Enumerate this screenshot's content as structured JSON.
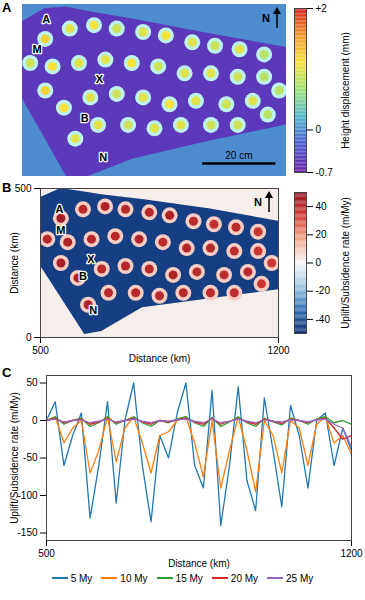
{
  "chart_data": [
    {
      "type": "heatmap",
      "panel": "A",
      "north": "N",
      "xlim": [
        0,
        72
      ],
      "ylim": [
        0,
        40
      ],
      "tick_labels": false,
      "region": {
        "x": [
          0,
          6,
          12,
          18,
          30,
          50,
          72
        ],
        "lower": [
          18,
          9,
          0,
          0,
          4,
          8,
          12
        ],
        "upper": [
          36,
          39,
          39.4,
          38.4,
          36.6,
          33.4,
          30
        ],
        "value": -0.5
      },
      "outside_value": 0,
      "centers": {
        "x": [
          6.2,
          12.9,
          19.5,
          25.7,
          32.9,
          39.1,
          46.3,
          52.5,
          59.2,
          65.9,
          2.1,
          8.2,
          15.4,
          22.6,
          29.8,
          37,
          44.2,
          51.4,
          58.7,
          65.9,
          6.2,
          11.3,
          18.5,
          25.7,
          32.9,
          40.1,
          47.3,
          55.6,
          62.8,
          70,
          14.4,
          20.6,
          28.8,
          36,
          43.2,
          51.4,
          58.7,
          66.9
        ],
        "y": [
          32,
          34.4,
          35.2,
          34.4,
          33.6,
          32.8,
          31.2,
          30.4,
          29.6,
          28.4,
          26.4,
          25.6,
          26.4,
          27.2,
          26.4,
          25.6,
          24,
          24,
          23.2,
          23.2,
          20,
          16,
          18.4,
          19.2,
          18.4,
          16.8,
          17.6,
          16.8,
          17.6,
          20,
          8.8,
          12,
          12,
          11.2,
          12,
          12,
          12,
          14.4
        ],
        "values": [
          1.2,
          1.0,
          1.1,
          0.9,
          1.0,
          1.1,
          1.0,
          0.9,
          1.0,
          0.8,
          0.9,
          1.1,
          1.0,
          1.0,
          1.1,
          0.9,
          1.0,
          1.0,
          0.9,
          0.8,
          1.2,
          1.1,
          1.0,
          0.9,
          1.0,
          1.1,
          1.0,
          0.9,
          1.0,
          0.8,
          1.0,
          1.0,
          0.9,
          1.0,
          1.0,
          0.9,
          0.9,
          0.8
        ]
      },
      "annotations": [
        {
          "text": "A",
          "x": 6.5,
          "y": 36.5
        },
        {
          "text": "M",
          "x": 4,
          "y": 29.5
        },
        {
          "text": "X",
          "x": 21,
          "y": 22.5
        },
        {
          "text": "B",
          "x": 17,
          "y": 13.5
        },
        {
          "text": "N",
          "x": 22,
          "y": 4.5
        }
      ],
      "scale_bar": {
        "length": 20,
        "label": "20 cm"
      },
      "colorbar": {
        "label": "Height displacement (mm)",
        "range": [
          -0.7,
          2
        ],
        "ticks": [
          {
            "value": 2,
            "label": "+2"
          },
          0,
          -0.7
        ],
        "colors": [
          "#6a1fa8",
          "#4a58d0",
          "#4fb6cc",
          "#9be37a",
          "#f5e23a",
          "#f39a2a",
          "#d7191c"
        ]
      }
    },
    {
      "type": "heatmap",
      "panel": "B",
      "north": "N",
      "xlabel": "Distance (km)",
      "ylabel": "Distance (km)",
      "xlim": [
        500,
        1200
      ],
      "ylim": [
        0,
        500
      ],
      "xticks": [
        500,
        1200
      ],
      "yticks": [
        0,
        500
      ],
      "region": {
        "x": [
          500,
          560,
          630,
          680,
          800,
          1000,
          1200
        ],
        "lower": [
          240,
          134,
          10,
          20,
          100,
          130,
          160
        ],
        "upper": [
          470,
          500,
          488,
          479,
          463,
          431,
          390
        ],
        "value": -45
      },
      "outside_value": 2,
      "centers": {
        "x": [
          560,
          625,
          690,
          750,
          820,
          880,
          950,
          1010,
          1075,
          1140,
          520,
          580,
          650,
          720,
          790,
          860,
          930,
          1000,
          1070,
          1140,
          560,
          610,
          680,
          750,
          820,
          890,
          960,
          1040,
          1110,
          1180,
          640,
          700,
          780,
          850,
          920,
          1000,
          1070,
          1150
        ],
        "y": [
          400,
          430,
          440,
          430,
          420,
          410,
          390,
          380,
          370,
          355,
          330,
          320,
          330,
          340,
          330,
          320,
          300,
          300,
          290,
          290,
          250,
          200,
          230,
          240,
          230,
          210,
          220,
          210,
          220,
          250,
          110,
          150,
          150,
          140,
          150,
          150,
          150,
          180
        ],
        "values": [
          45,
          40,
          42,
          40,
          41,
          43,
          40,
          38,
          40,
          36,
          40,
          42,
          41,
          40,
          42,
          40,
          41,
          40,
          39,
          36,
          44,
          42,
          40,
          41,
          40,
          42,
          40,
          39,
          40,
          35,
          42,
          40,
          41,
          40,
          40,
          39,
          39,
          36
        ]
      },
      "annotations": [
        {
          "text": "A",
          "x": 556,
          "y": 428
        },
        {
          "text": "M",
          "x": 560,
          "y": 360
        },
        {
          "text": "X",
          "x": 648,
          "y": 262
        },
        {
          "text": "B",
          "x": 625,
          "y": 205
        },
        {
          "text": "N",
          "x": 655,
          "y": 90
        }
      ],
      "colorbar": {
        "label": "Uplift/Subsidence rate (m/My)",
        "range": [
          -50,
          50
        ],
        "ticks": [
          40,
          20,
          0,
          -20,
          -40
        ],
        "colors": [
          "#0b2a6f",
          "#2f6db3",
          "#9fc7e4",
          "#f7f7f7",
          "#f2a98c",
          "#d43d35",
          "#8e0c1c"
        ]
      }
    },
    {
      "type": "line",
      "panel": "C",
      "xlabel": "Distance (km)",
      "ylabel": "Uplift/Subsidence rate (m/My)",
      "xlim": [
        500,
        1200
      ],
      "ylim": [
        -160,
        60
      ],
      "xticks": [
        500,
        1200
      ],
      "yticks": [
        -150,
        -100,
        -50,
        0,
        50
      ],
      "legend": "bottom",
      "x": [
        500,
        520,
        540,
        560,
        580,
        600,
        620,
        640,
        660,
        680,
        700,
        720,
        740,
        760,
        780,
        800,
        820,
        840,
        860,
        880,
        900,
        920,
        940,
        960,
        980,
        1000,
        1020,
        1040,
        1060,
        1080,
        1100,
        1120,
        1140,
        1160,
        1180,
        1200
      ],
      "series": [
        {
          "name": "5 My",
          "color": "#1f77b4",
          "values": [
            0,
            25,
            -60,
            -20,
            10,
            -130,
            -60,
            25,
            -110,
            0,
            50,
            -60,
            -135,
            -20,
            -50,
            10,
            50,
            -60,
            -90,
            40,
            -140,
            -60,
            45,
            -80,
            -120,
            30,
            -40,
            -115,
            20,
            -20,
            -90,
            0,
            10,
            -60,
            -10,
            -40
          ]
        },
        {
          "name": "10 My",
          "color": "#ff7f0e",
          "values": [
            0,
            5,
            -30,
            -10,
            0,
            -70,
            -40,
            5,
            -55,
            -10,
            5,
            -30,
            -70,
            -20,
            -15,
            0,
            5,
            -30,
            -75,
            0,
            -90,
            -40,
            5,
            -40,
            -95,
            0,
            -20,
            -70,
            0,
            -10,
            -60,
            -5,
            5,
            -30,
            -20,
            -45
          ]
        },
        {
          "name": "15 My",
          "color": "#2ca02c",
          "values": [
            0,
            5,
            -5,
            0,
            3,
            -8,
            -3,
            5,
            -5,
            0,
            5,
            -3,
            -8,
            0,
            -3,
            2,
            5,
            -3,
            -8,
            4,
            -8,
            -2,
            5,
            -3,
            -8,
            3,
            -2,
            -6,
            3,
            0,
            -5,
            2,
            5,
            -3,
            0,
            -5
          ]
        },
        {
          "name": "20 My",
          "color": "#d62728",
          "values": [
            0,
            3,
            -3,
            0,
            2,
            -5,
            -2,
            3,
            -3,
            0,
            3,
            -2,
            -5,
            0,
            -2,
            1,
            3,
            -2,
            -5,
            3,
            -5,
            -1,
            3,
            -2,
            -5,
            2,
            -1,
            -4,
            2,
            0,
            -3,
            1,
            3,
            -10,
            -25,
            -20
          ]
        },
        {
          "name": "25 My",
          "color": "#9467bd",
          "values": [
            0,
            2,
            -2,
            0,
            1,
            -3,
            -1,
            2,
            -2,
            0,
            2,
            -1,
            -3,
            0,
            -1,
            1,
            2,
            -1,
            -3,
            2,
            -3,
            -1,
            2,
            -1,
            -3,
            1,
            -1,
            -2,
            1,
            0,
            -2,
            1,
            2,
            -5,
            -10,
            -35
          ]
        }
      ]
    }
  ]
}
